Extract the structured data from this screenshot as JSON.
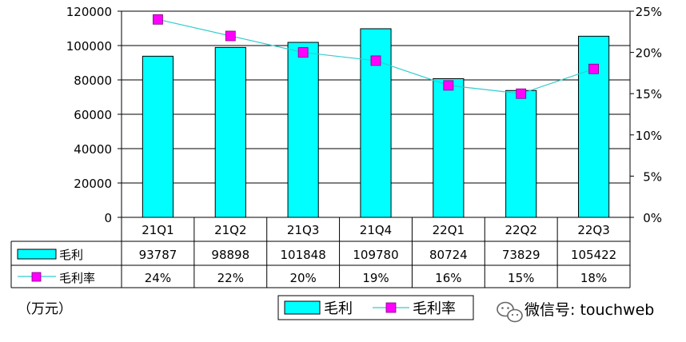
{
  "chart_data": {
    "type": "bar",
    "categories": [
      "21Q1",
      "21Q2",
      "21Q3",
      "21Q4",
      "22Q1",
      "22Q2",
      "22Q3"
    ],
    "series": [
      {
        "name": "毛利",
        "type": "bar",
        "axis": "left",
        "color": "#00FFFF",
        "values": [
          93787,
          98898,
          101848,
          109780,
          80724,
          73829,
          105422
        ]
      },
      {
        "name": "毛利率",
        "type": "line",
        "axis": "right",
        "color": "#33CCCC",
        "marker_color": "#FF00FF",
        "values": [
          24,
          22,
          20,
          19,
          16,
          15,
          18
        ],
        "value_labels": [
          "24%",
          "22%",
          "20%",
          "19%",
          "16%",
          "15%",
          "18%"
        ]
      }
    ],
    "y_left": {
      "min": 0,
      "max": 120000,
      "ticks": [
        0,
        20000,
        40000,
        60000,
        80000,
        100000,
        120000
      ],
      "tick_labels": [
        "0",
        "20000",
        "40000",
        "60000",
        "80000",
        "100000",
        "120000"
      ]
    },
    "y_right": {
      "min": 0,
      "max": 25,
      "ticks": [
        0,
        5,
        10,
        15,
        20,
        25
      ],
      "tick_labels": [
        "0%",
        "5%",
        "10%",
        "15%",
        "20%",
        "25%"
      ]
    },
    "grid": true,
    "data_table": true,
    "legend_placement": "bottom-center",
    "title": "",
    "xlabel": ""
  },
  "unit_label": "（万元）",
  "watermark": "微信号: touchweb"
}
